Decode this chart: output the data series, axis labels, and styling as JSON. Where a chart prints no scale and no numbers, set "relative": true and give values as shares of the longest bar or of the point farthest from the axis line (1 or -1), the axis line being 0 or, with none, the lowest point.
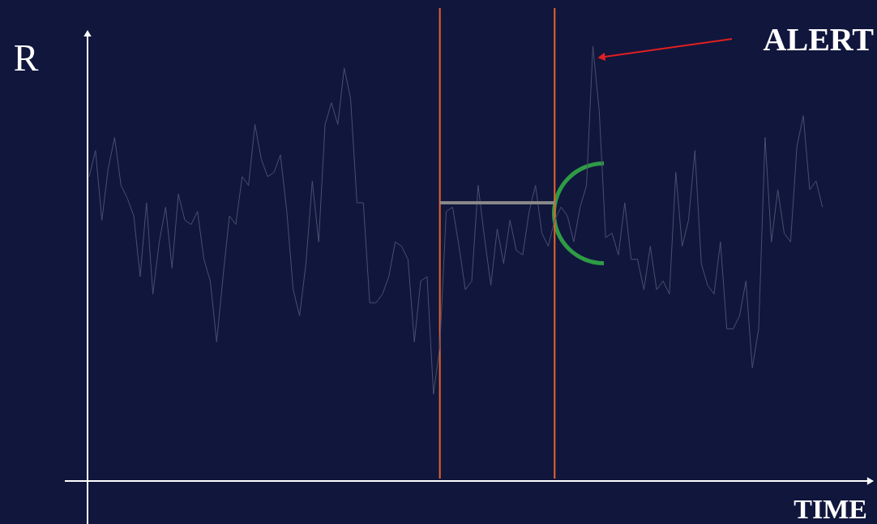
{
  "chart_data": {
    "type": "line",
    "xlabel": "TIME",
    "ylabel": "R",
    "relative": true,
    "annotations": [
      "ALERT"
    ],
    "categories": [
      null,
      null,
      null,
      null,
      null,
      null,
      null,
      null,
      null,
      null,
      null,
      null,
      null,
      null,
      null,
      null,
      null,
      null,
      null,
      null,
      null,
      null,
      null,
      null,
      null,
      null,
      null,
      null,
      null,
      null,
      null,
      null,
      null,
      null,
      null,
      null,
      null,
      null,
      null,
      null,
      null,
      null,
      null,
      null,
      null,
      null,
      null,
      null,
      null,
      null,
      null,
      null,
      null,
      null,
      null,
      null,
      null,
      null,
      null,
      null,
      null,
      null,
      null,
      null,
      null,
      null,
      null,
      null,
      null,
      null,
      null,
      null,
      null,
      null,
      null,
      null,
      null,
      null,
      null,
      null,
      null,
      null,
      null,
      null,
      null,
      null,
      null,
      null,
      null,
      null,
      null,
      null,
      null,
      null,
      null,
      null,
      null,
      null,
      null,
      null,
      null,
      null,
      null,
      null,
      null,
      null,
      null,
      null,
      null,
      null,
      null,
      null,
      null,
      null,
      null,
      null
    ],
    "series": [
      {
        "color": "#4a5070",
        "values": [
          0.7,
          0.76,
          0.6,
          0.72,
          0.79,
          0.68,
          0.65,
          0.61,
          0.47,
          0.64,
          0.43,
          0.55,
          0.63,
          0.49,
          0.66,
          0.6,
          0.59,
          0.62,
          0.51,
          0.46,
          0.32,
          0.47,
          0.61,
          0.59,
          0.7,
          0.68,
          0.82,
          0.74,
          0.7,
          0.71,
          0.75,
          0.62,
          0.44,
          0.38,
          0.5,
          0.69,
          0.55,
          0.82,
          0.87,
          0.82,
          0.95,
          0.88,
          0.64,
          0.64,
          0.41,
          0.41,
          0.43,
          0.47,
          0.55,
          0.54,
          0.51,
          0.32,
          0.46,
          0.47,
          0.2,
          0.31,
          0.62,
          0.63,
          0.54,
          0.44,
          0.46,
          0.68,
          0.56,
          0.45,
          0.58,
          0.5,
          0.6,
          0.53,
          0.52,
          0.62,
          0.68,
          0.57,
          0.54,
          0.6,
          0.63,
          0.61,
          0.55,
          0.63,
          0.68,
          1,
          0.85,
          0.56,
          0.57,
          0.52,
          0.64,
          0.51,
          0.51,
          0.44,
          0.54,
          0.44,
          0.46,
          0.43,
          0.71,
          0.54,
          0.6,
          0.76,
          0.5,
          0.45,
          0.43,
          0.55,
          0.35,
          0.35,
          0.38,
          0.46,
          0.26,
          0.35,
          0.79,
          0.55,
          0.67,
          0.57,
          0.55,
          0.77,
          0.84,
          0.67,
          0.69,
          0.63
        ]
      },
      {
        "color": "#888888",
        "values": [
          null,
          null,
          null,
          null,
          null,
          null,
          null,
          null,
          null,
          null,
          null,
          null,
          null,
          null,
          null,
          null,
          null,
          null,
          null,
          null,
          null,
          null,
          null,
          null,
          null,
          null,
          null,
          null,
          null,
          null,
          null,
          null,
          null,
          null,
          null,
          null,
          null,
          null,
          null,
          null,
          null,
          null,
          null,
          null,
          null,
          null,
          null,
          null,
          null,
          null,
          null,
          null,
          null,
          null,
          null,
          0.64,
          0.64,
          0.64,
          0.64,
          0.64,
          0.64,
          0.64,
          0.64,
          0.64,
          0.64,
          0.64,
          0.64,
          0.64,
          0.64,
          0.64,
          0.64,
          0.64,
          0.64,
          0.64,
          null,
          null,
          null,
          null,
          null,
          null,
          null,
          null,
          null,
          null,
          null,
          null,
          null,
          null,
          null,
          null,
          null,
          null,
          null,
          null,
          null,
          null,
          null,
          null,
          null,
          null,
          null,
          null,
          null,
          null,
          null,
          null,
          null,
          null,
          null,
          null,
          null,
          null,
          null,
          null,
          null,
          null
        ]
      }
    ]
  }
}
